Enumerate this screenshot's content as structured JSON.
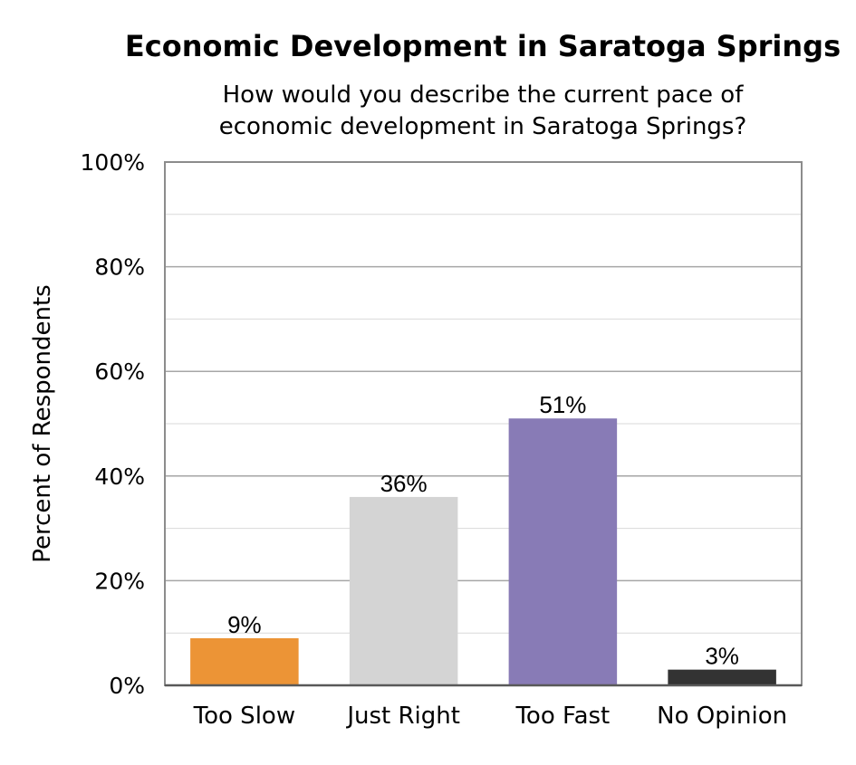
{
  "chart_data": {
    "type": "bar",
    "title": "Economic Development in Saratoga Springs",
    "subtitle_lines": [
      "How would you describe the current pace of",
      "economic development in Saratoga Springs?"
    ],
    "xlabel": "",
    "ylabel": "Percent of Respondents",
    "ylim": [
      0,
      100
    ],
    "y_ticks": [
      0,
      20,
      40,
      60,
      80,
      100
    ],
    "y_tick_labels": [
      "0%",
      "20%",
      "40%",
      "60%",
      "80%",
      "100%"
    ],
    "minor_gridlines_every": 10,
    "grid": true,
    "legend": "none",
    "categories": [
      "Too Slow",
      "Just Right",
      "Too Fast",
      "No Opinion"
    ],
    "values": [
      9,
      36,
      51,
      3
    ],
    "data_labels": [
      "9%",
      "36%",
      "51%",
      "3%"
    ],
    "colors": [
      "#ec9436",
      "#d4d4d4",
      "#887bb6",
      "#333333"
    ],
    "gridline_color": "#a6a6a6",
    "axis_color": "#8c8c8c"
  }
}
